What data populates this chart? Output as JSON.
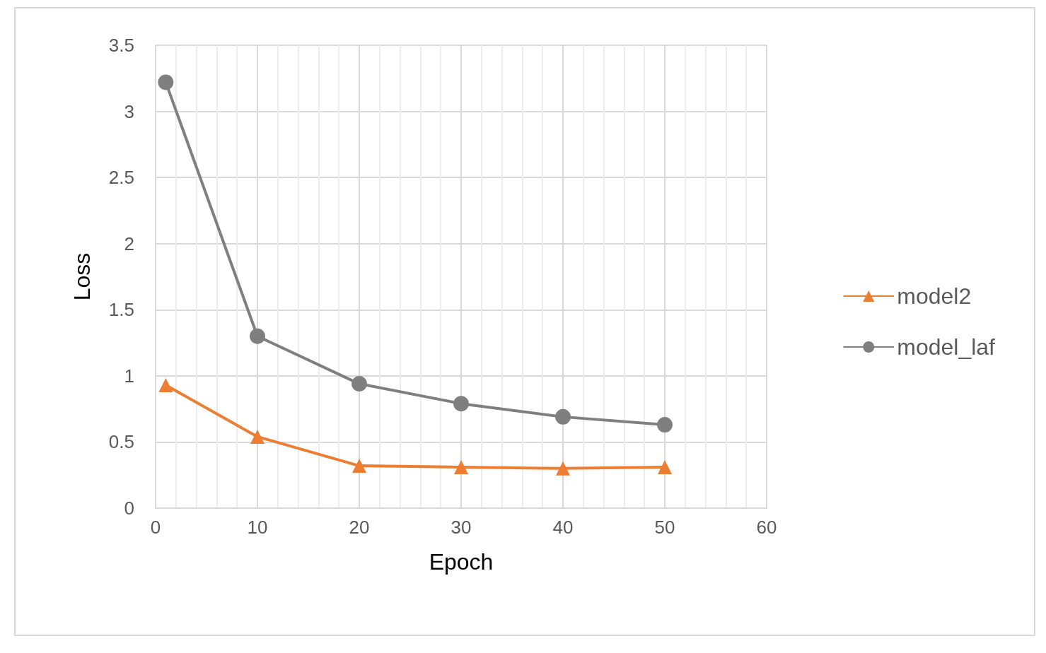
{
  "chart_data": {
    "type": "line",
    "xlabel": "Epoch",
    "ylabel": "Loss",
    "x": [
      1,
      10,
      20,
      30,
      40,
      50
    ],
    "series": [
      {
        "name": "model2",
        "color": "#ed7d31",
        "marker": "triangle",
        "values": [
          0.93,
          0.54,
          0.32,
          0.31,
          0.3,
          0.31
        ]
      },
      {
        "name": "model_laf",
        "color": "#7f7f7f",
        "marker": "circle",
        "values": [
          3.22,
          1.3,
          0.94,
          0.79,
          0.69,
          0.63
        ]
      }
    ],
    "xlim": [
      0,
      60
    ],
    "xticks": [
      0,
      10,
      20,
      30,
      40,
      50,
      60
    ],
    "ylim": [
      0,
      3.5
    ],
    "yticks": [
      0,
      0.5,
      1,
      1.5,
      2,
      2.5,
      3,
      3.5
    ],
    "grid": true,
    "legend": "right"
  }
}
